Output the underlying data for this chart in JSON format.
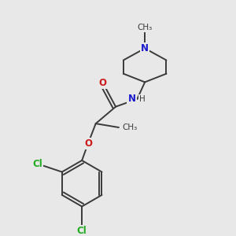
{
  "bg_color": "#e8e8e8",
  "bond_color": "#3a3a3a",
  "bond_width": 1.4,
  "atom_colors": {
    "C": "#3a3a3a",
    "N": "#1a1acc",
    "O": "#cc1a1a",
    "Cl": "#22aa22",
    "H": "#3a3a3a"
  },
  "fs": 8.5,
  "figsize": [
    3.0,
    3.0
  ],
  "dpi": 100
}
